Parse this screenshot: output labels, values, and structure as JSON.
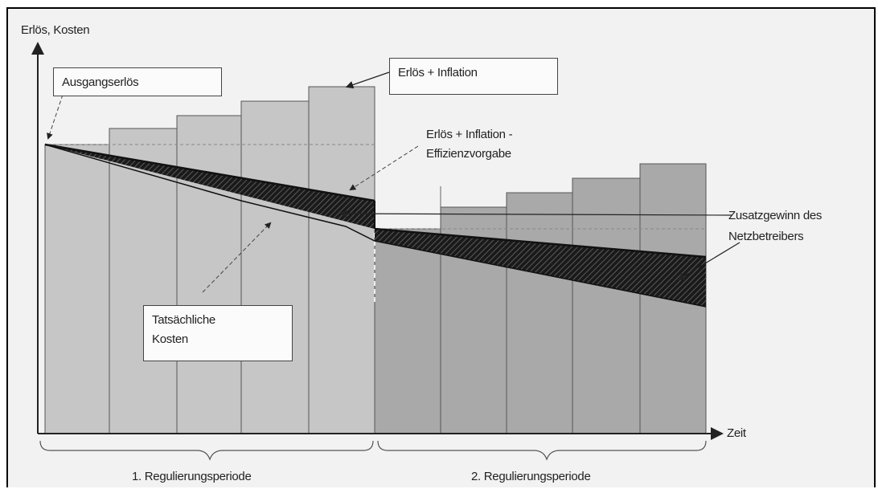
{
  "diagram": {
    "y_axis_label": "Erlös, Kosten",
    "x_axis_label": "Zeit",
    "callouts": {
      "ausgangserloes": "Ausgangserlös",
      "erloes_inflation": "Erlös + Inflation",
      "effizienz_line1": "Erlös + Inflation -",
      "effizienz_line2": "Effizienzvorgabe",
      "kosten_line1": "Tatsächliche",
      "kosten_line2": "Kosten",
      "zusatz_line1": "Zusatzgewinn des",
      "zusatz_line2": "Netzbetreibers"
    },
    "periods": [
      {
        "label": "1. Regulierungsperiode"
      },
      {
        "label": "2. Regulierungsperiode"
      }
    ]
  }
}
